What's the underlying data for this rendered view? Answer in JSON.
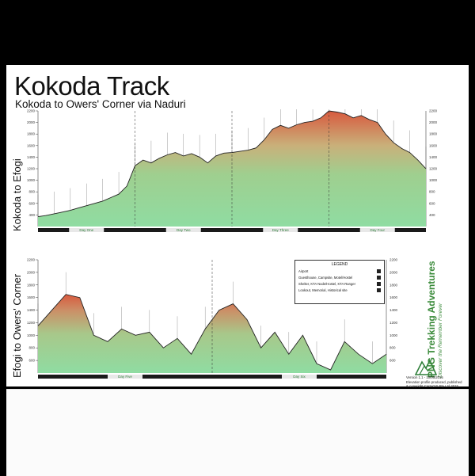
{
  "title": "Kokoda Track",
  "subtitle": "Kokoda to Owers' Corner via Naduri",
  "colors": {
    "low": "#7fd08f",
    "mid": "#b7c489",
    "high": "#d9674a",
    "background": "#ffffff",
    "frame": "#000000"
  },
  "chart_data": [
    {
      "type": "area",
      "ylabel": "Kokoda to Efogi",
      "x": [
        0,
        1,
        2,
        3,
        4,
        5,
        6,
        7,
        8,
        9,
        10,
        11,
        12,
        13,
        14,
        15,
        16,
        17,
        18,
        19,
        20,
        21,
        22,
        23,
        24,
        25,
        26,
        27,
        28,
        29,
        30,
        31,
        32,
        33,
        34,
        35,
        36,
        37,
        38,
        39,
        40,
        41,
        42,
        43,
        44,
        45,
        46,
        47,
        48
      ],
      "y": [
        370,
        390,
        420,
        450,
        480,
        520,
        560,
        600,
        640,
        700,
        760,
        900,
        1250,
        1350,
        1300,
        1380,
        1440,
        1480,
        1420,
        1460,
        1400,
        1300,
        1420,
        1470,
        1480,
        1500,
        1520,
        1560,
        1700,
        1880,
        1950,
        1900,
        1960,
        2000,
        2020,
        2080,
        2200,
        2180,
        2150,
        2080,
        2120,
        2050,
        2000,
        1800,
        1650,
        1550,
        1480,
        1350,
        1200
      ],
      "ylim": [
        200,
        2200
      ],
      "xlim": [
        0,
        48
      ],
      "yticks": [
        400,
        600,
        800,
        1000,
        1200,
        1400,
        1600,
        1800,
        2000,
        2200
      ],
      "day_labels": [
        "Day One",
        "Day Two",
        "Day Three",
        "Day Four"
      ],
      "grid": false
    },
    {
      "type": "area",
      "ylabel": "Efogi to Owers' Corner",
      "x": [
        48,
        50,
        52,
        54,
        56,
        58,
        60,
        62,
        64,
        66,
        68,
        70,
        72,
        74,
        76,
        78,
        80,
        82,
        84,
        86,
        88,
        90,
        92,
        94,
        96,
        98
      ],
      "y": [
        1150,
        1400,
        1650,
        1600,
        1000,
        900,
        1100,
        1000,
        1050,
        800,
        950,
        700,
        1100,
        1400,
        1500,
        1250,
        800,
        1050,
        700,
        1000,
        550,
        450,
        900,
        700,
        550,
        700
      ],
      "ylim": [
        400,
        2200
      ],
      "xlim": [
        48,
        98
      ],
      "yticks": [
        600,
        800,
        1000,
        1200,
        1400,
        1600,
        1800,
        2000,
        2200
      ],
      "day_labels": [
        "Day Five",
        "Day Six"
      ],
      "grid": false
    }
  ],
  "legend": {
    "title": "LEGEND",
    "rows": [
      "Airport",
      "Guesthouse, Campsite, Motel/Hostel",
      "Shelter, KTA Node/Hostel, KTA Ranger",
      "Lookout, Memorial, Historical site"
    ]
  },
  "brand": {
    "name": "PNG Trekking Adventures",
    "tagline": "Discover the Remember Forever"
  },
  "credits": [
    "Version 1.1 - 10/06/2015",
    "Elevation profile produced, published",
    "& copyright CartoGIS Pty Ltd 2015"
  ]
}
